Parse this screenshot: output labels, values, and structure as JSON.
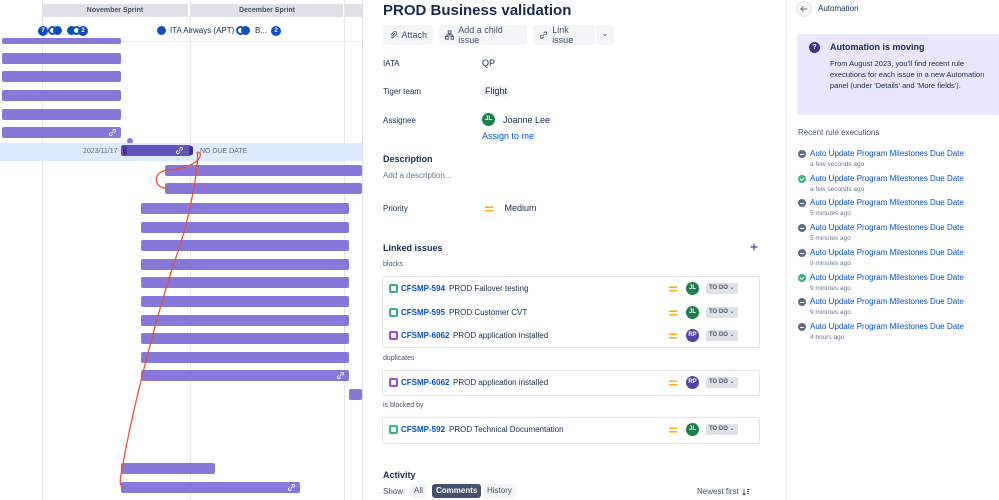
{
  "timeline": {
    "sprints": [
      "November Sprint",
      "December Sprint"
    ],
    "header_row": {
      "badge_left": "7",
      "badge_mid": "2",
      "airline_label": "ITA Airways (APT)",
      "b_label": "B...",
      "badge_right": "2"
    },
    "selected_bar": {
      "start_date": "2023/11/17",
      "due_label": "NO DUE DATE"
    }
  },
  "issue": {
    "title": "PROD Business validation",
    "toolbar": {
      "attach": "Attach",
      "add_child": "Add a child issue",
      "link_issue": "Link issue"
    },
    "fields": {
      "iata_label": "IATA",
      "iata_value": "QP",
      "tiger_label": "Tiger team",
      "tiger_value": "Flight",
      "assignee_label": "Assignee",
      "assignee_initials": "JL",
      "assignee_name": "Joanne Lee",
      "assign_to_me": "Assign to me",
      "description_label": "Description",
      "description_placeholder": "Add a description...",
      "priority_label": "Priority",
      "priority_value": "Medium"
    },
    "linked": {
      "title": "Linked issues",
      "groups": [
        {
          "type": "blocks",
          "items": [
            {
              "key": "CFSMP-594",
              "summary": "PROD Failover testing",
              "avatar": "JL",
              "status": "TO DO"
            },
            {
              "key": "CFSMP-595",
              "summary": "PROD Customer CVT",
              "avatar": "JL",
              "status": "TO DO"
            },
            {
              "key": "CFSMP-6062",
              "summary": "PROD application installed",
              "avatar": "RP",
              "status": "TO DO"
            }
          ]
        },
        {
          "type": "duplicates",
          "items": [
            {
              "key": "CFSMP-6062",
              "summary": "PROD application installed",
              "avatar": "RP",
              "status": "TO DO"
            }
          ]
        },
        {
          "type": "is blocked by",
          "items": [
            {
              "key": "CFSMP-592",
              "summary": "PROD Technical Documentation",
              "avatar": "JL",
              "status": "TO DO"
            }
          ]
        }
      ]
    },
    "activity": {
      "title": "Activity",
      "show_label": "Show:",
      "options": [
        "All",
        "Comments",
        "History"
      ],
      "active": "Comments",
      "sort": "Newest first"
    }
  },
  "automation": {
    "title": "Automation",
    "notice_title": "Automation is moving",
    "notice_body": "From August 2023, you'll find recent rule executions for each issue in a new Automation panel (under 'Details' and 'More fields').",
    "recent_title": "Recent rule executions",
    "executions": [
      {
        "rule": "Auto Update Program Milestones Due Date",
        "time": "a few seconds ago",
        "status": "none"
      },
      {
        "rule": "Auto Update Program Milestones Due Date",
        "time": "a few seconds ago",
        "status": "done"
      },
      {
        "rule": "Auto Update Program Milestones Due Date",
        "time": "5 minutes ago",
        "status": "none"
      },
      {
        "rule": "Auto Update Program Milestones Due Date",
        "time": "5 minutes ago",
        "status": "none"
      },
      {
        "rule": "Auto Update Program Milestones Due Date",
        "time": "9 minutes ago",
        "status": "none"
      },
      {
        "rule": "Auto Update Program Milestones Due Date",
        "time": "9 minutes ago",
        "status": "done"
      },
      {
        "rule": "Auto Update Program Milestones Due Date",
        "time": "9 minutes ago",
        "status": "none"
      },
      {
        "rule": "Auto Update Program Milestones Due Date",
        "time": "4 hours ago",
        "status": "none"
      }
    ]
  },
  "colors": {
    "bar": "#8777d9",
    "accent": "#0052cc",
    "dependency_line": "#e5533d",
    "selected_row": "#deebff"
  }
}
